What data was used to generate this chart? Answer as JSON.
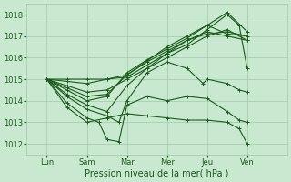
{
  "title": "",
  "xlabel": "Pression niveau de la mer( hPa )",
  "ylabel": "",
  "ylim": [
    1011.5,
    1018.5
  ],
  "yticks": [
    1012,
    1013,
    1014,
    1015,
    1016,
    1017,
    1018
  ],
  "xtick_labels": [
    "Lun",
    "Sam",
    "Mar",
    "Mer",
    "Jeu",
    "Ven"
  ],
  "xtick_positions": [
    0.5,
    1.5,
    2.5,
    3.5,
    4.5,
    5.5
  ],
  "bg_color": "#c8e8d0",
  "grid_color": "#a0c8a8",
  "line_color": "#1a5c1a",
  "line_width": 0.8,
  "marker": "+",
  "marker_size": 3,
  "xlim": [
    0,
    6.5
  ],
  "lines": [
    {
      "x": [
        0.5,
        1.0,
        1.5,
        2.0,
        2.5,
        3.5,
        4.0,
        4.5,
        5.0,
        5.5
      ],
      "y": [
        1015.0,
        1015.0,
        1015.0,
        1015.0,
        1015.1,
        1016.2,
        1016.8,
        1017.2,
        1017.0,
        1016.8
      ]
    },
    {
      "x": [
        0.5,
        1.0,
        1.5,
        2.0,
        2.5,
        3.5,
        4.0,
        4.5,
        5.0,
        5.5
      ],
      "y": [
        1015.0,
        1014.9,
        1014.8,
        1015.0,
        1015.2,
        1016.5,
        1017.0,
        1017.5,
        1017.1,
        1017.0
      ]
    },
    {
      "x": [
        0.5,
        1.0,
        1.5,
        2.0,
        2.5,
        3.0,
        3.5,
        4.0,
        4.5,
        5.0,
        5.5
      ],
      "y": [
        1015.0,
        1014.7,
        1014.4,
        1014.5,
        1015.0,
        1015.5,
        1016.0,
        1016.5,
        1017.0,
        1017.3,
        1016.8
      ]
    },
    {
      "x": [
        0.5,
        1.0,
        1.5,
        2.0,
        2.5,
        3.0,
        3.5,
        4.0,
        4.5,
        5.0,
        5.5
      ],
      "y": [
        1015.0,
        1014.6,
        1014.2,
        1014.3,
        1015.2,
        1015.8,
        1016.3,
        1016.8,
        1017.1,
        1017.2,
        1017.0
      ]
    },
    {
      "x": [
        0.5,
        1.0,
        1.5,
        2.0,
        2.5,
        3.0,
        3.5,
        4.0,
        4.5,
        5.0,
        5.5
      ],
      "y": [
        1015.0,
        1014.5,
        1014.0,
        1014.2,
        1015.3,
        1015.9,
        1016.4,
        1016.9,
        1017.5,
        1018.1,
        1017.2
      ]
    },
    {
      "x": [
        0.5,
        1.0,
        1.5,
        2.0,
        2.5,
        3.0,
        3.5,
        4.0,
        4.5,
        5.0,
        5.3,
        5.5
      ],
      "y": [
        1015.0,
        1014.3,
        1013.8,
        1013.5,
        1014.7,
        1015.5,
        1016.2,
        1016.6,
        1017.3,
        1018.0,
        1017.5,
        1015.5
      ]
    },
    {
      "x": [
        0.5,
        1.0,
        1.5,
        2.0,
        2.3,
        2.5,
        3.0,
        3.5,
        4.0,
        4.4,
        4.5,
        5.0,
        5.3,
        5.5
      ],
      "y": [
        1015.0,
        1014.2,
        1013.6,
        1013.3,
        1013.0,
        1014.0,
        1015.3,
        1015.8,
        1015.5,
        1014.8,
        1015.0,
        1014.8,
        1014.5,
        1014.4
      ]
    },
    {
      "x": [
        0.5,
        1.0,
        1.5,
        1.8,
        2.0,
        2.3,
        2.5,
        3.0,
        3.5,
        4.0,
        4.5,
        5.0,
        5.3,
        5.5
      ],
      "y": [
        1015.0,
        1013.9,
        1013.2,
        1013.0,
        1012.2,
        1012.1,
        1013.8,
        1014.2,
        1014.0,
        1014.2,
        1014.1,
        1013.5,
        1013.1,
        1013.0
      ]
    },
    {
      "x": [
        0.5,
        1.0,
        1.5,
        2.0,
        2.5,
        3.0,
        3.5,
        4.0,
        4.5,
        5.0,
        5.3,
        5.5
      ],
      "y": [
        1015.0,
        1013.7,
        1013.0,
        1013.2,
        1013.4,
        1013.3,
        1013.2,
        1013.1,
        1013.1,
        1013.0,
        1012.7,
        1012.0
      ]
    }
  ]
}
